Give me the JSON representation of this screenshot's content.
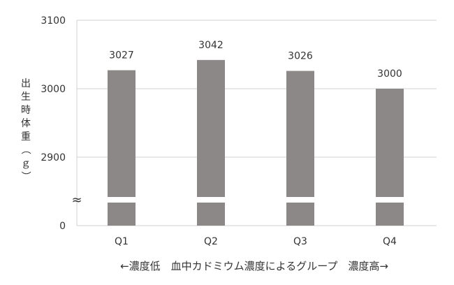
{
  "chart_data": {
    "type": "bar",
    "categories": [
      "Q1",
      "Q2",
      "Q3",
      "Q4"
    ],
    "values": [
      3027,
      3042,
      3026,
      3000
    ],
    "data_labels": [
      "3027",
      "3042",
      "3026",
      "3000"
    ],
    "ylabel": "出生時体重（ｇ）",
    "xlabel": "←濃度低　血中カドミウム濃度によるグループ　濃度高→",
    "y_ticks": [
      "3100",
      "3000",
      "2900",
      "0"
    ],
    "axis_break": true,
    "axis_break_symbol": "≈",
    "ylim_upper_segment": [
      2880,
      3100
    ],
    "grid": true,
    "bar_color": "#8c8887"
  }
}
